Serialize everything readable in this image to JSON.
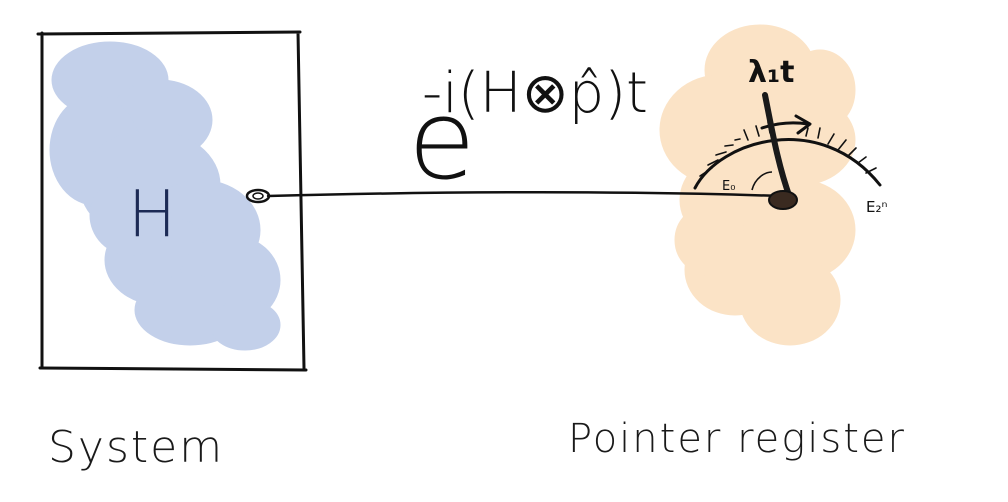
{
  "labels": {
    "system": "System",
    "pointer_register": "Pointer register",
    "hamiltonian": "H",
    "exponent_base": "e",
    "exponent": "-i(H⊗p̂)t",
    "pointer_value": "λ₁t",
    "scale_start": "E₀",
    "scale_end": "E₂ⁿ"
  },
  "colors": {
    "system_blob": "#c3d0ea",
    "pointer_blob": "#fbe3c6",
    "ink": "#111111"
  }
}
